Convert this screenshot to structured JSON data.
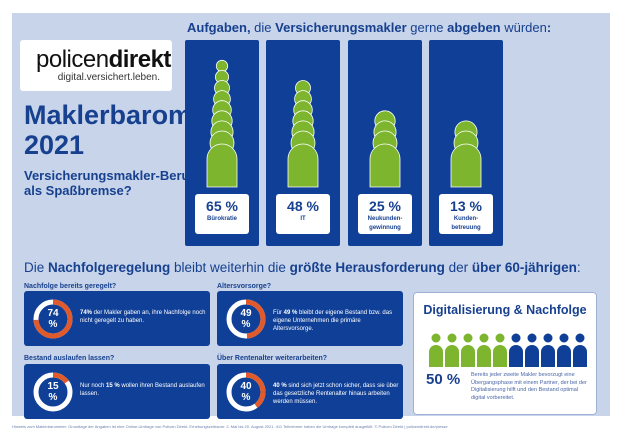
{
  "logo": {
    "brand_light": "policen",
    "brand_bold": "direkt",
    "tagline": "digital.versichert.leben."
  },
  "title": {
    "line1": "Maklerbarometer",
    "line2": "2021"
  },
  "subtitle": {
    "line1": "Versicherungsmakler-Beruf",
    "line2": "als Spaßbremse?"
  },
  "tasks": {
    "heading": {
      "p1": "Aufgaben,",
      "p2": " die ",
      "p3": "Versicherungsmakler",
      "p4": " gerne ",
      "p5": "abgeben",
      "p6": " würden",
      "p7": ":"
    },
    "items": [
      {
        "value": 65,
        "pct": "65 %",
        "label1": "Bürokratie",
        "label2": ""
      },
      {
        "value": 48,
        "pct": "48 %",
        "label1": "IT",
        "label2": ""
      },
      {
        "value": 25,
        "pct": "25 %",
        "label1": "Neukunden-",
        "label2": "gewinnung"
      },
      {
        "value": 13,
        "pct": "13 %",
        "label1": "Kunden-",
        "label2": "betreuung"
      }
    ]
  },
  "succession": {
    "heading": {
      "p1": "Die ",
      "p2": "Nachfolgeregelung",
      "p3": " bleibt weiterhin die ",
      "p4": "größte Herausforderung",
      "p5": " der ",
      "p6": "über 60-jährigen",
      "p7": ":"
    },
    "cards": [
      {
        "question": "Nachfolge bereits geregelt?",
        "value": 74,
        "num": "74",
        "unit": "%",
        "bold": "74%",
        "text": " der Makler gaben an, ihre Nachfolge noch nicht geregelt zu haben.",
        "pre": ""
      },
      {
        "question": "Altersvorsorge?",
        "value": 49,
        "num": "49",
        "unit": "%",
        "pre": "Für ",
        "bold": "49 %",
        "text": " bleibt der eigene Bestand bzw. das eigene Unternehmen die primäre Altersvorsorge."
      },
      {
        "question": "Bestand auslaufen lassen?",
        "value": 15,
        "num": "15",
        "unit": "%",
        "pre": "Nur noch ",
        "bold": "15 %",
        "text": " wollen ihren Bestand auslaufen lassen."
      },
      {
        "question": "Über Rentenalter weiterarbeiten?",
        "value": 40,
        "num": "40",
        "unit": "%",
        "pre": "",
        "bold": "40 %",
        "text": " sind sich jetzt schon sicher, dass sie über das gesetzliche Rentenalter hinaus arbeiten werden müssen."
      }
    ]
  },
  "digital": {
    "title": "Digitalisierung & Nachfolge",
    "value": 50,
    "pct": "50 %",
    "text": "Bereits jeder zweite Makler bevorzugt eine Übergangsphase mit einem Partner, der bei der Digitalisierung hilft und den Bestand optimal digital vorbereitet."
  },
  "footer": "Hinweis zum Maklerbarometer: Grundlage der Angaben ist eine Online-Umfrage von Policen Direkt. Erhebungszeitraum: 2. Mai bis 20. August 2021. 411 Teilnehmer haben die Umfrage komplett ausgefüllt. © Policen Direkt | policendirekt.de/presse",
  "colors": {
    "navy": "#0f3f96",
    "green": "#7db52f",
    "orange": "#e05a2b",
    "panel": "#c7d4ea"
  }
}
